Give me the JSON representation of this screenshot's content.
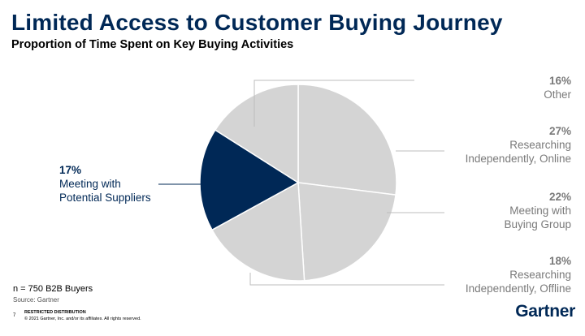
{
  "header": {
    "title": "Limited Access to Customer Buying Journey",
    "subtitle": "Proportion of Time Spent on Key Buying Activities"
  },
  "chart_data": {
    "type": "pie",
    "title": "Limited Access to Customer Buying Journey",
    "subtitle": "Proportion of Time Spent on Key Buying Activities",
    "slices": [
      {
        "label": "Researching Independently, Online",
        "pct_label": "27%",
        "value": 27,
        "color": "#d4d4d4"
      },
      {
        "label": "Meeting with Buying Group",
        "pct_label": "22%",
        "value": 22,
        "color": "#d4d4d4"
      },
      {
        "label": "Researching Independently, Offline",
        "pct_label": "18%",
        "value": 18,
        "color": "#d4d4d4"
      },
      {
        "label": "Meeting with Potential Suppliers",
        "pct_label": "17%",
        "value": 17,
        "color": "#002856"
      },
      {
        "label": "Other",
        "pct_label": "16%",
        "value": 16,
        "color": "#d4d4d4"
      }
    ]
  },
  "labels": {
    "other": {
      "pct": "16%",
      "line1": "Other"
    },
    "online": {
      "pct": "27%",
      "line1": "Researching",
      "line2": "Independently, Online"
    },
    "buying_group": {
      "pct": "22%",
      "line1": "Meeting with",
      "line2": "Buying Group"
    },
    "offline": {
      "pct": "18%",
      "line1": "Researching",
      "line2": "Independently, Offline"
    },
    "suppliers": {
      "pct": "17%",
      "line1": "Meeting with",
      "line2": "Potential Suppliers"
    }
  },
  "footnote": {
    "sample": "n = 750 B2B Buyers",
    "source": "Source: Gartner",
    "page": "7",
    "restricted": "RESTRICTED DISTRIBUTION",
    "copyright": "© 2021 Gartner, Inc. and/or its affiliates. All rights reserved."
  },
  "brand": {
    "logo": "Gartner",
    "accent": "#002856"
  }
}
